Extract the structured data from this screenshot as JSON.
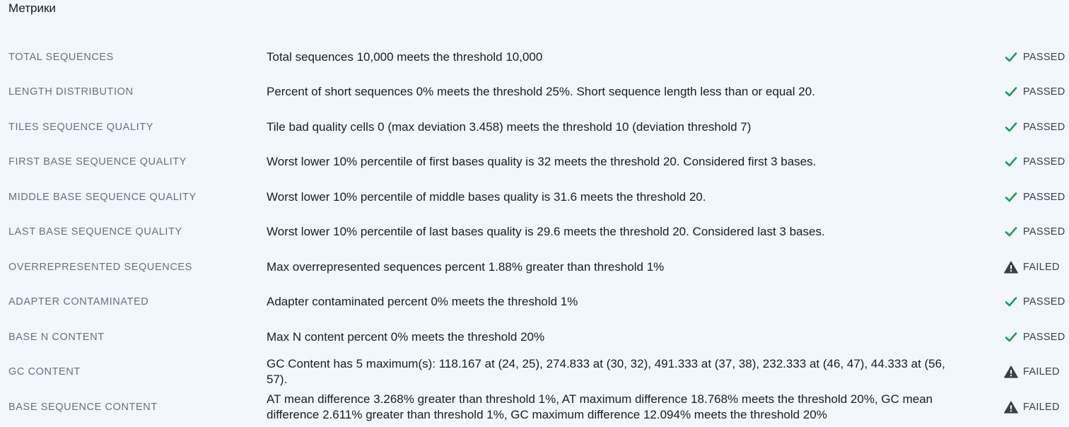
{
  "header": {
    "title": "Метрики"
  },
  "metrics": [
    {
      "name": "TOTAL SEQUENCES",
      "description": "Total sequences 10,000 meets the threshold 10,000",
      "status": "PASSED"
    },
    {
      "name": "LENGTH DISTRIBUTION",
      "description": "Percent of short sequences 0% meets the threshold 25%. Short sequence length less than or equal 20.",
      "status": "PASSED"
    },
    {
      "name": "TILES SEQUENCE QUALITY",
      "description": "Tile bad quality cells 0 (max deviation 3.458) meets the threshold 10 (deviation threshold 7)",
      "status": "PASSED"
    },
    {
      "name": "FIRST BASE SEQUENCE QUALITY",
      "description": "Worst lower 10% percentile of first bases quality is 32 meets the threshold 20. Considered first 3 bases.",
      "status": "PASSED"
    },
    {
      "name": "MIDDLE BASE SEQUENCE QUALITY",
      "description": "Worst lower 10% percentile of middle bases quality is 31.6 meets the threshold 20.",
      "status": "PASSED"
    },
    {
      "name": "LAST BASE SEQUENCE QUALITY",
      "description": "Worst lower 10% percentile of last bases quality is 29.6 meets the threshold 20. Considered last 3 bases.",
      "status": "PASSED"
    },
    {
      "name": "OVERREPRESENTED SEQUENCES",
      "description": "Max overrepresented sequences percent 1.88% greater than threshold 1%",
      "status": "FAILED"
    },
    {
      "name": "ADAPTER CONTAMINATED",
      "description": "Adapter contaminated percent 0% meets the threshold 1%",
      "status": "PASSED"
    },
    {
      "name": "BASE N CONTENT",
      "description": "Max N content percent 0% meets the threshold 20%",
      "status": "PASSED"
    },
    {
      "name": "GC CONTENT",
      "description": "GC Content has 5 maximum(s): 118.167 at (24, 25), 274.833 at (30, 32), 491.333 at (37, 38), 232.333 at (46, 47), 44.333 at (56, 57).",
      "status": "FAILED"
    },
    {
      "name": "BASE SEQUENCE CONTENT",
      "description": "AT mean difference 3.268% greater than threshold 1%, AT maximum difference 18.768% meets the threshold 20%, GC mean difference 2.611% greater than threshold 1%, GC maximum difference 12.094% meets the threshold 20%",
      "status": "FAILED"
    }
  ],
  "icons": {
    "passed": "check-icon",
    "failed": "warning-icon"
  },
  "colors": {
    "passed": "#1f9d55",
    "failed": "#3a3f48",
    "background": "#f2f6fd"
  }
}
